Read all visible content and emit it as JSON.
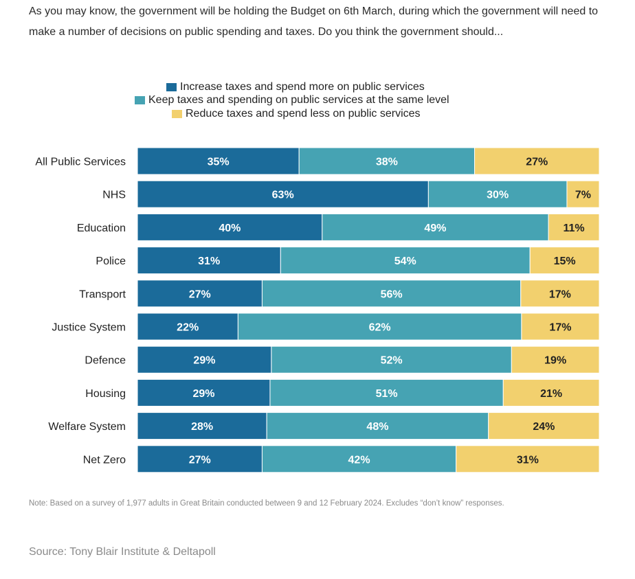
{
  "question": "As you may know, the government will be holding the Budget on 6th March, during which the government will need to make a number of decisions on public spending and taxes. Do you think the government should...",
  "note": "Note: Based on a survey of 1,977 adults in Great Britain conducted between 9 and 12 February 2024. Excludes “don’t know” responses.",
  "source": "Source: Tony Blair Institute & Deltapoll",
  "colors": {
    "increase": "#1b6b9a",
    "keep": "#46a3b3",
    "reduce": "#f2d06e"
  },
  "chart_data": {
    "type": "bar",
    "orientation": "horizontal",
    "stacked": true,
    "legend_position": "top",
    "categories": [
      "All Public Services",
      "NHS",
      "Education",
      "Police",
      "Transport",
      "Justice System",
      "Defence",
      "Housing",
      "Welfare System",
      "Net Zero"
    ],
    "series": [
      {
        "name": "Increase taxes and spend more on public services",
        "values": [
          35,
          63,
          40,
          31,
          27,
          22,
          29,
          29,
          28,
          27
        ]
      },
      {
        "name": "Keep taxes and spending on public services at the same level",
        "values": [
          38,
          30,
          49,
          54,
          56,
          62,
          52,
          51,
          48,
          42
        ]
      },
      {
        "name": "Reduce taxes and spend less on public services",
        "values": [
          27,
          7,
          11,
          15,
          17,
          17,
          19,
          21,
          24,
          31
        ]
      }
    ],
    "value_suffix": "%"
  }
}
